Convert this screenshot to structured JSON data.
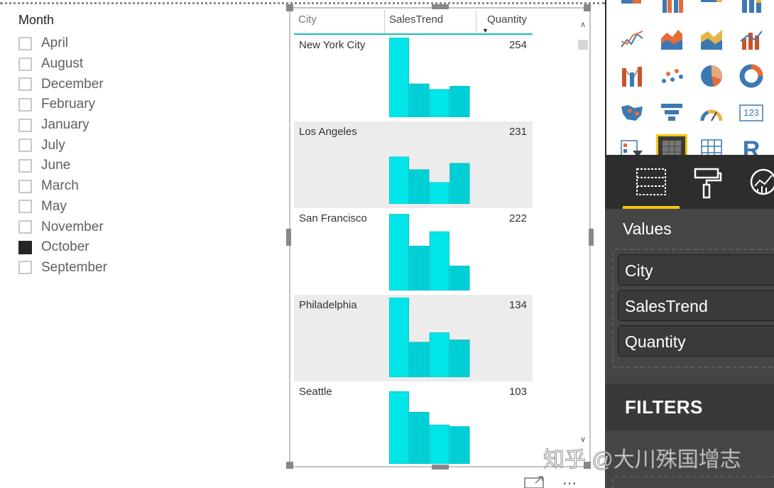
{
  "slicer": {
    "title": "Month",
    "items": [
      {
        "label": "April",
        "checked": false
      },
      {
        "label": "August",
        "checked": false
      },
      {
        "label": "December",
        "checked": false
      },
      {
        "label": "February",
        "checked": false
      },
      {
        "label": "January",
        "checked": false
      },
      {
        "label": "July",
        "checked": false
      },
      {
        "label": "June",
        "checked": false
      },
      {
        "label": "March",
        "checked": false
      },
      {
        "label": "May",
        "checked": false
      },
      {
        "label": "November",
        "checked": false
      },
      {
        "label": "October",
        "checked": true
      },
      {
        "label": "September",
        "checked": false
      }
    ]
  },
  "table": {
    "headers": {
      "city": "City",
      "trend": "SalesTrend",
      "quantity": "Quantity"
    },
    "sort": {
      "column": "Quantity",
      "direction": "descending"
    },
    "rows": [
      {
        "city": "New York City",
        "quantity": "254",
        "trend": [
          100,
          42,
          35,
          39
        ]
      },
      {
        "city": "Los Angeles",
        "quantity": "231",
        "trend": [
          59,
          43,
          27,
          51
        ]
      },
      {
        "city": "San Francisco",
        "quantity": "222",
        "trend": [
          96,
          56,
          74,
          31
        ]
      },
      {
        "city": "Philadelphia",
        "quantity": "134",
        "trend": [
          100,
          44,
          56,
          47
        ]
      },
      {
        "city": "Seattle",
        "quantity": "103",
        "trend": [
          91,
          65,
          49,
          47
        ]
      }
    ],
    "bar_color": "#00e5e8",
    "bar_color_alt": "#00cfd6"
  },
  "gallery": {
    "icons": [
      "stacked-bar-icon",
      "clustered-column-icon",
      "stacked-bar-100-icon",
      "column-100-icon",
      "line-chart-icon",
      "area-chart-icon",
      "stacked-area-icon",
      "line-column-icon",
      "ribbon-chart-icon",
      "scatter-icon",
      "pie-chart-icon",
      "donut-chart-icon",
      "map-icon",
      "funnel-icon",
      "gauge-icon",
      "card-icon",
      "slicer-icon",
      "table-icon",
      "matrix-icon",
      "r-script-icon"
    ],
    "selected": "table-icon",
    "card_label": "123",
    "r_label": "R"
  },
  "tabs": [
    "fields-tab",
    "format-tab",
    "analytics-tab"
  ],
  "values_pane": {
    "title": "Values",
    "fields": [
      "City",
      "SalesTrend",
      "Quantity"
    ]
  },
  "filters": {
    "title": "FILTERS"
  },
  "watermark": "知乎 @大川殊国增志",
  "colors": {
    "accent": "#f2c811",
    "teal": "#13c2c2",
    "pane_bg": "#454545"
  }
}
